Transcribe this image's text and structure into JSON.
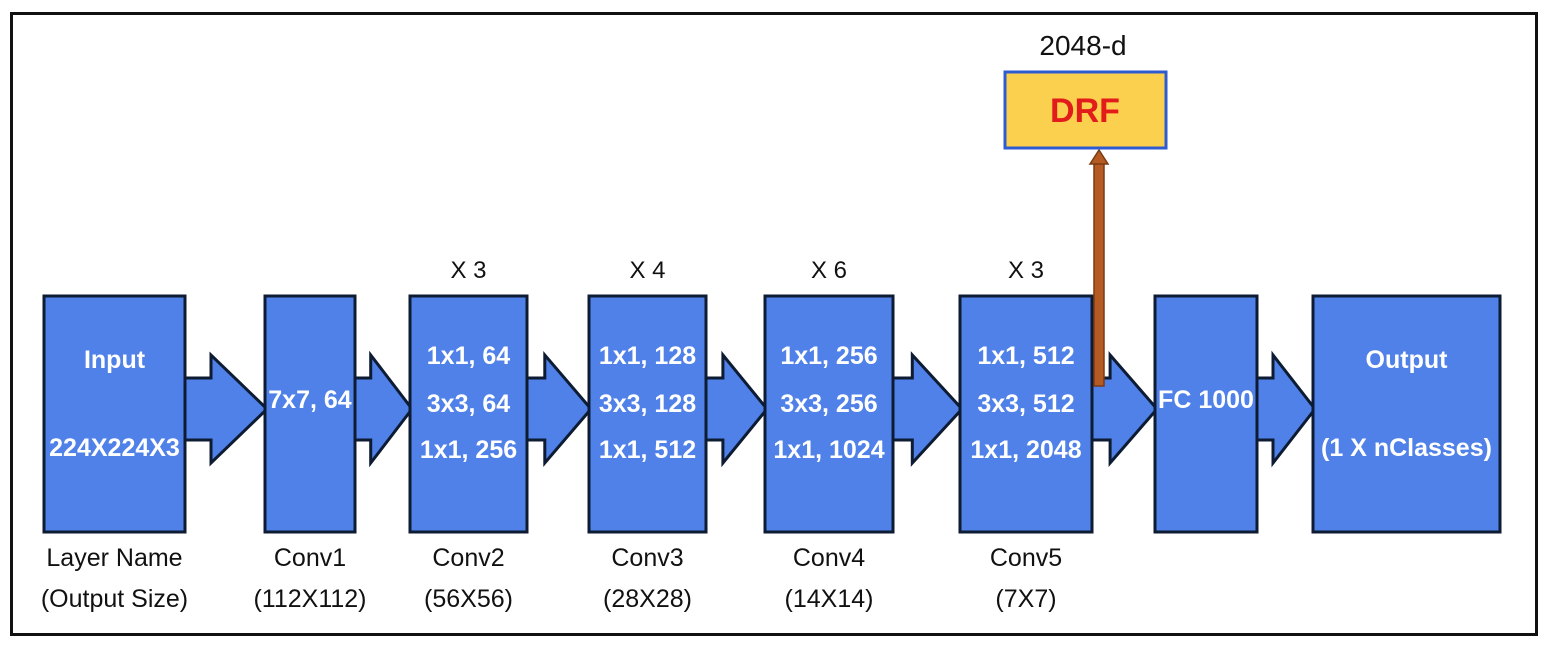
{
  "diagram": {
    "colors": {
      "block_fill": "#4f81e8",
      "block_stroke": "#0d1b33",
      "drf_fill": "#fcd04f",
      "drf_border": "#2f5bd0",
      "drf_text": "#e21b1b",
      "feature_arrow": "#b55a22"
    },
    "blocks": [
      {
        "id": "input",
        "lines": [
          "Input",
          "224X224X3"
        ],
        "caption": [
          "Layer Name",
          "(Output Size)"
        ],
        "repeat": ""
      },
      {
        "id": "conv1",
        "lines": [
          "7x7, 64"
        ],
        "caption": [
          "Conv1",
          "(112X112)"
        ],
        "repeat": ""
      },
      {
        "id": "conv2",
        "lines": [
          "1x1, 64",
          "3x3, 64",
          "1x1, 256"
        ],
        "caption": [
          "Conv2",
          "(56X56)"
        ],
        "repeat": "X 3"
      },
      {
        "id": "conv3",
        "lines": [
          "1x1, 128",
          "3x3, 128",
          "1x1, 512"
        ],
        "caption": [
          "Conv3",
          "(28X28)"
        ],
        "repeat": "X 4"
      },
      {
        "id": "conv4",
        "lines": [
          "1x1, 256",
          "3x3, 256",
          "1x1, 1024"
        ],
        "caption": [
          "Conv4",
          "(14X14)"
        ],
        "repeat": "X 6"
      },
      {
        "id": "conv5",
        "lines": [
          "1x1, 512",
          "3x3, 512",
          "1x1, 2048"
        ],
        "caption": [
          "Conv5",
          "(7X7)"
        ],
        "repeat": "X 3"
      },
      {
        "id": "fc",
        "lines": [
          "FC 1000"
        ],
        "caption": [],
        "repeat": ""
      },
      {
        "id": "output",
        "lines": [
          "Output",
          "(1 X nClasses)"
        ],
        "caption": [],
        "repeat": ""
      }
    ],
    "feature": {
      "label": "DRF",
      "dim": "2048-d"
    }
  }
}
